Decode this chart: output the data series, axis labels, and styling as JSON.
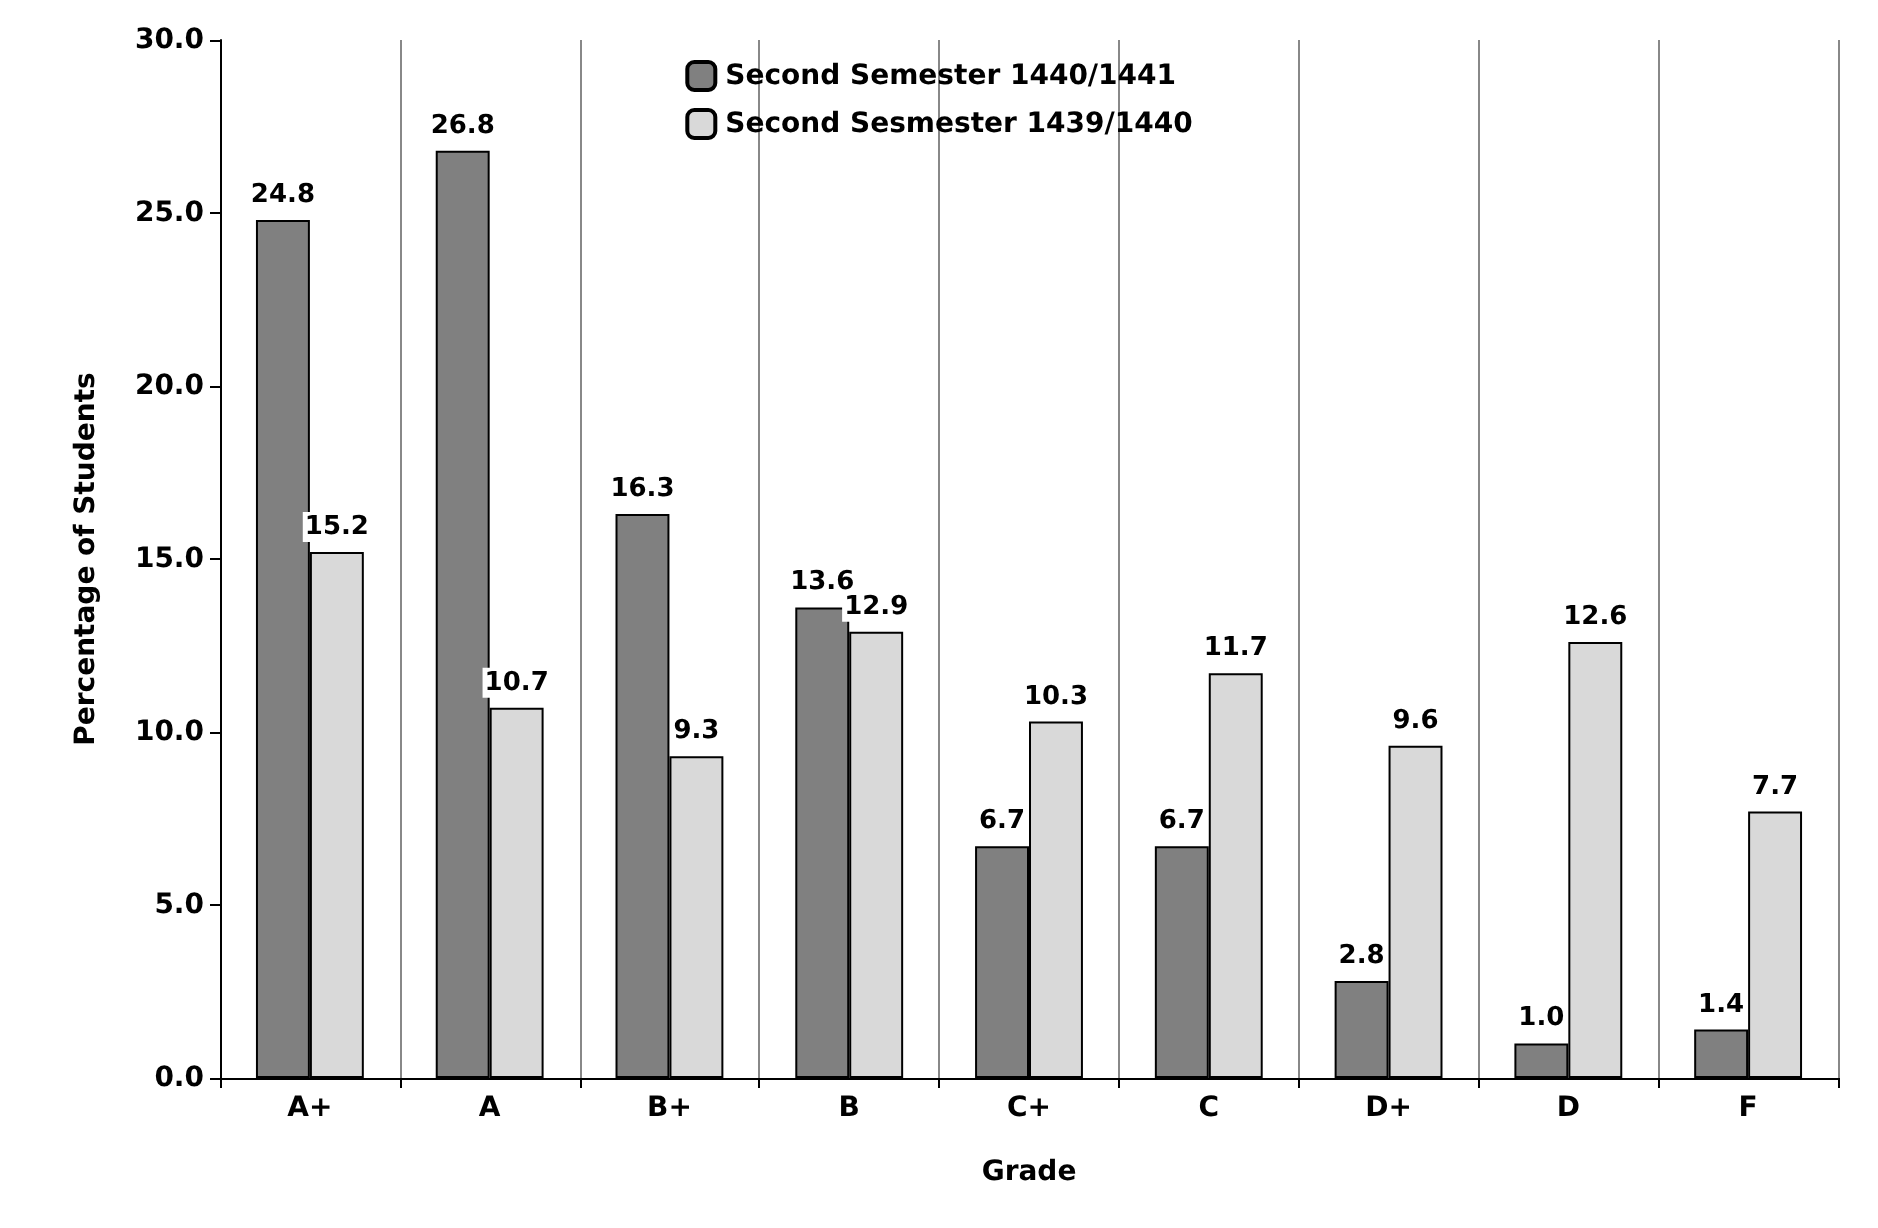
{
  "chart_data": {
    "type": "bar",
    "xlabel": "Grade",
    "ylabel": "Percentage of Students",
    "categories": [
      "A+",
      "A",
      "B+",
      "B",
      "C+",
      "C",
      "D+",
      "D",
      "F"
    ],
    "series": [
      {
        "name": "Second Semester 1440/1441",
        "color": "#808080",
        "values": [
          24.8,
          26.8,
          16.3,
          13.6,
          6.7,
          6.7,
          2.8,
          1.0,
          1.4
        ],
        "value_labels": [
          "24.8",
          "26.8",
          "16.3",
          "13.6",
          "6.7",
          "6.7",
          "2.8",
          "1.0",
          "1.4"
        ]
      },
      {
        "name": "Second Sesmester 1439/1440",
        "color": "#d9d9d9",
        "values": [
          15.2,
          10.7,
          9.3,
          12.9,
          10.3,
          11.7,
          9.6,
          12.6,
          7.7
        ],
        "value_labels": [
          "15.2",
          "10.7",
          "9.3",
          "12.9",
          "10.3",
          "11.7",
          "9.6",
          "12.6",
          "7.7"
        ]
      }
    ],
    "ylim": [
      0,
      30
    ],
    "yticks": [
      {
        "value": 0,
        "label": "0.0"
      },
      {
        "value": 5,
        "label": "5.0"
      },
      {
        "value": 10,
        "label": "10.0"
      },
      {
        "value": 15,
        "label": "15.0"
      },
      {
        "value": 20,
        "label": "20.0"
      },
      {
        "value": 25,
        "label": "25.0"
      },
      {
        "value": 30,
        "label": "30.0"
      }
    ],
    "grid": "x",
    "legend": "top"
  }
}
